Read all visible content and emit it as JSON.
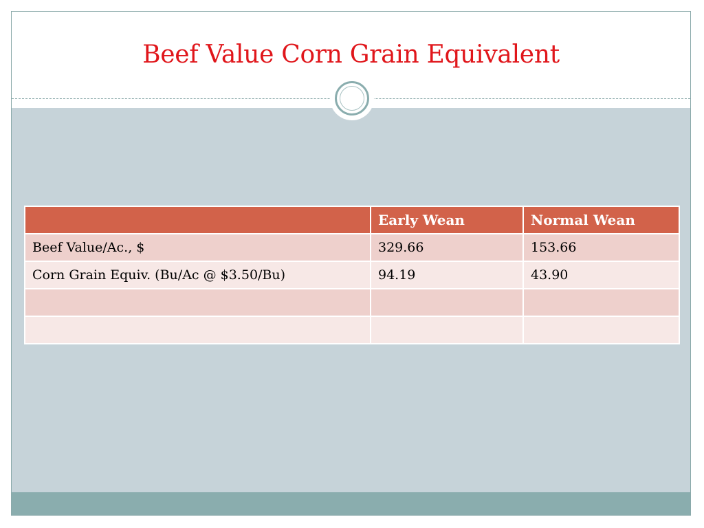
{
  "slide": {
    "title": "Beef Value Corn Grain Equivalent"
  },
  "table": {
    "headers": [
      "",
      "Early Wean",
      "Normal Wean"
    ],
    "rows": [
      [
        "Beef Value/Ac., $",
        "329.66",
        "153.66"
      ],
      [
        "Corn Grain Equiv. (Bu/Ac @ $3.50/Bu)",
        "94.19",
        "43.90"
      ],
      [
        "",
        "",
        ""
      ],
      [
        "",
        "",
        ""
      ]
    ]
  },
  "colors": {
    "title": "#e0161b",
    "header_fill": "#d2624a",
    "row_odd": "#eed0cc",
    "row_even": "#f7e8e6",
    "content_background": "#c6d3d9",
    "accent_teal": "#8aadae"
  }
}
